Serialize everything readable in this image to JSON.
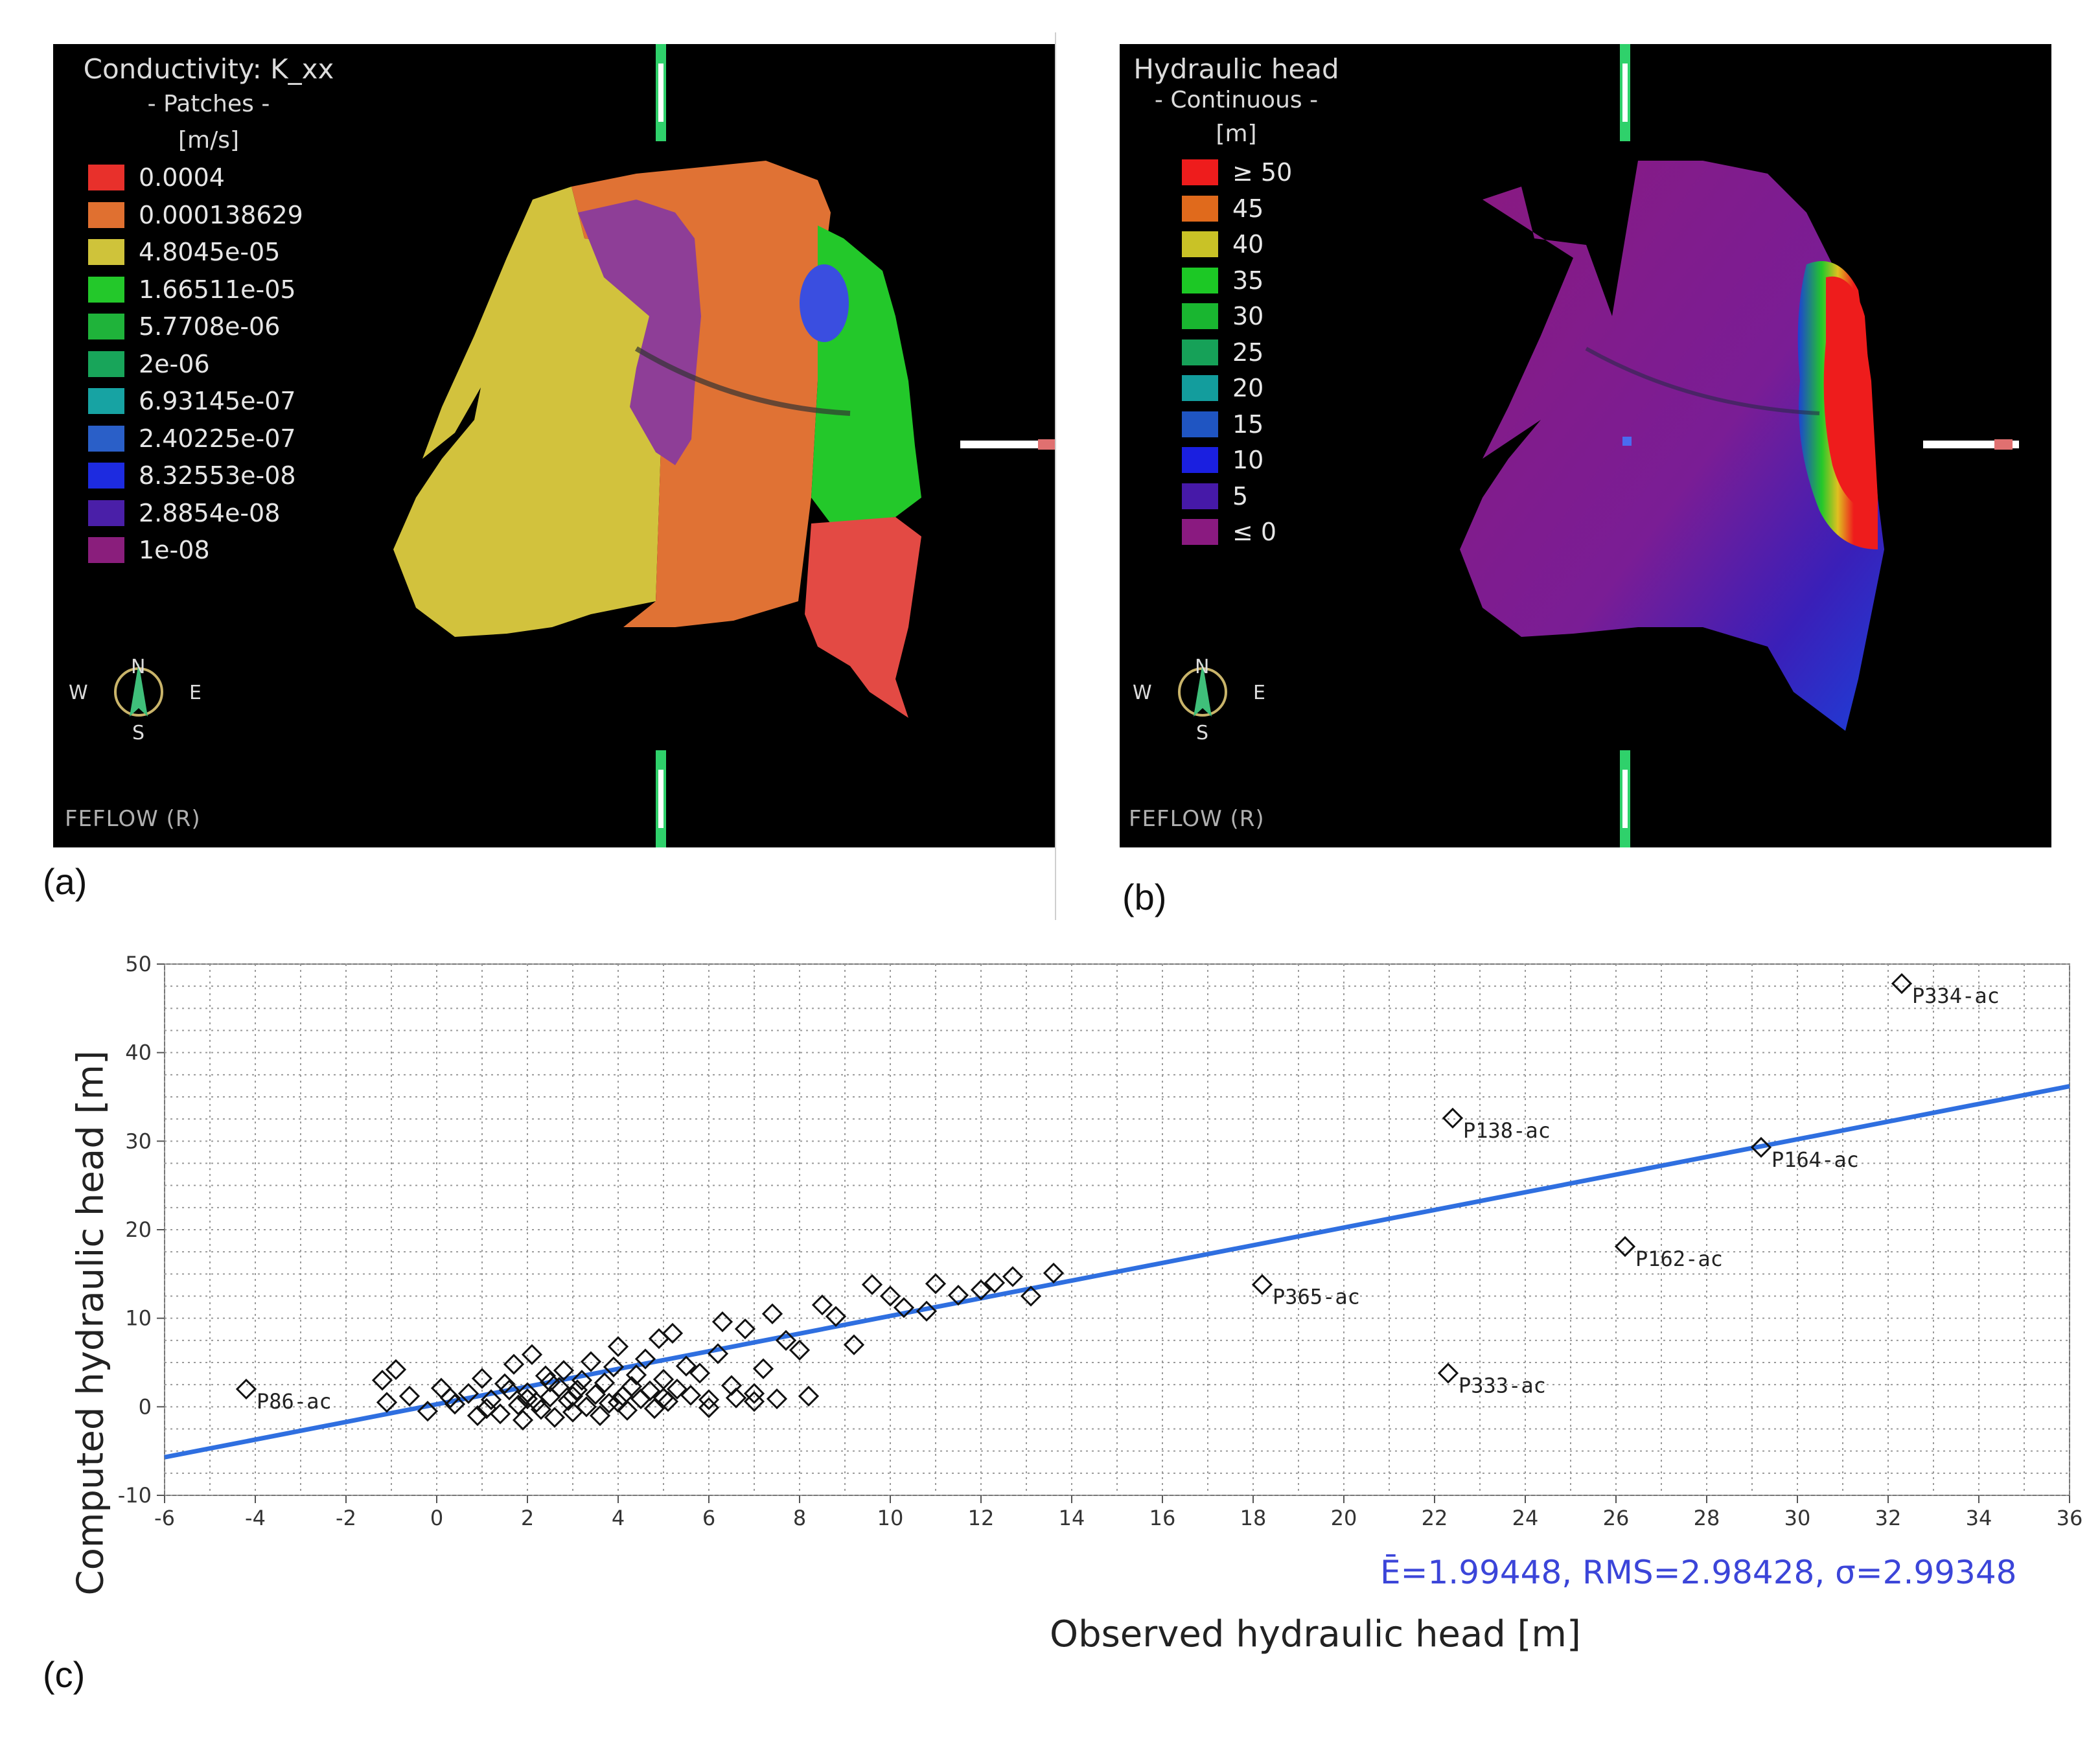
{
  "panel_a": {
    "legend": {
      "title": "Conductivity: K_xx",
      "subtitle": "- Patches -",
      "unit": "[m/s]",
      "items": [
        {
          "label": "0.0004",
          "color": "#e8302b"
        },
        {
          "label": "0.000138629",
          "color": "#e07030"
        },
        {
          "label": "4.8045e-05",
          "color": "#cfc33a"
        },
        {
          "label": "1.66511e-05",
          "color": "#23c82a"
        },
        {
          "label": "5.7708e-06",
          "color": "#1fb33a"
        },
        {
          "label": "2e-06",
          "color": "#18a55a"
        },
        {
          "label": "6.93145e-07",
          "color": "#17a3a3"
        },
        {
          "label": "2.40225e-07",
          "color": "#2a5fc8"
        },
        {
          "label": "8.32553e-08",
          "color": "#1d2be0"
        },
        {
          "label": "2.8854e-08",
          "color": "#4a1fa8"
        },
        {
          "label": "1e-08",
          "color": "#8a1e7c"
        }
      ]
    },
    "compass": {
      "n": "N",
      "s": "S",
      "e": "E",
      "w": "W"
    },
    "watermark": "FEFLOW (R)",
    "label": "(a)"
  },
  "panel_b": {
    "legend": {
      "title": "Hydraulic head",
      "subtitle": "- Continuous -",
      "unit": "[m]",
      "items": [
        {
          "label": "≥ 50",
          "color": "#ee1c1c"
        },
        {
          "label": "45",
          "color": "#e06a1c"
        },
        {
          "label": "40",
          "color": "#c9c226"
        },
        {
          "label": "35",
          "color": "#1cc825"
        },
        {
          "label": "30",
          "color": "#19b630"
        },
        {
          "label": "25",
          "color": "#16a158"
        },
        {
          "label": "20",
          "color": "#139d9d"
        },
        {
          "label": "15",
          "color": "#1f55c2"
        },
        {
          "label": "10",
          "color": "#1a1fe0"
        },
        {
          "label": "5",
          "color": "#4619a8"
        },
        {
          "label": "≤ 0",
          "color": "#8a1a80"
        }
      ]
    },
    "compass": {
      "n": "N",
      "s": "S",
      "e": "E",
      "w": "W"
    },
    "watermark": "FEFLOW (R)",
    "label": "(b)"
  },
  "panel_c": {
    "label": "(c)",
    "stats": "Ē=1.99448, RMS=2.98428, σ=2.99348"
  },
  "chart_data": {
    "type": "scatter",
    "xlabel": "Observed hydraulic head [m]",
    "ylabel": "Computed hydraulic head [m]",
    "xlim": [
      -6,
      36
    ],
    "ylim": [
      -10,
      50
    ],
    "xticks": [
      -6,
      -4,
      -2,
      0,
      2,
      4,
      6,
      8,
      10,
      12,
      14,
      16,
      18,
      20,
      22,
      24,
      26,
      28,
      30,
      32,
      34,
      36
    ],
    "yticks": [
      -10,
      0,
      10,
      20,
      30,
      40,
      50
    ],
    "grid": true,
    "marker": "diamond-open",
    "fit_line": {
      "color": "#2f6fe0",
      "x": [
        -6,
        36
      ],
      "y": [
        -5.7,
        36.2
      ]
    },
    "labeled_points": [
      {
        "x": 32.3,
        "y": 47.8,
        "label": "P334-ac"
      },
      {
        "x": 22.4,
        "y": 32.6,
        "label": "P138-ac"
      },
      {
        "x": 29.2,
        "y": 29.3,
        "label": "P164-ac"
      },
      {
        "x": 26.2,
        "y": 18.1,
        "label": "P162-ac"
      },
      {
        "x": 18.2,
        "y": 13.8,
        "label": "P365-ac"
      },
      {
        "x": 22.3,
        "y": 3.8,
        "label": "P333-ac"
      },
      {
        "x": -4.2,
        "y": 2.0,
        "label": "P86-ac"
      }
    ],
    "points": [
      [
        -1.2,
        3.0
      ],
      [
        -0.9,
        4.2
      ],
      [
        -1.1,
        0.5
      ],
      [
        -0.6,
        1.2
      ],
      [
        -0.2,
        -0.5
      ],
      [
        0.1,
        2.1
      ],
      [
        0.4,
        0.3
      ],
      [
        0.7,
        1.5
      ],
      [
        0.9,
        -1.0
      ],
      [
        1.0,
        3.2
      ],
      [
        1.2,
        0.8
      ],
      [
        1.4,
        -0.8
      ],
      [
        1.5,
        2.6
      ],
      [
        1.7,
        4.8
      ],
      [
        1.8,
        0.2
      ],
      [
        1.9,
        -1.5
      ],
      [
        2.0,
        1.6
      ],
      [
        2.1,
        5.9
      ],
      [
        2.2,
        0.5
      ],
      [
        2.3,
        -0.3
      ],
      [
        2.4,
        3.5
      ],
      [
        2.5,
        1.1
      ],
      [
        2.6,
        -1.2
      ],
      [
        2.7,
        2.2
      ],
      [
        2.8,
        4.1
      ],
      [
        2.9,
        0.7
      ],
      [
        3.0,
        -0.6
      ],
      [
        3.1,
        1.9
      ],
      [
        3.2,
        3.0
      ],
      [
        3.3,
        0.0
      ],
      [
        3.4,
        5.1
      ],
      [
        3.5,
        1.4
      ],
      [
        3.6,
        -1.0
      ],
      [
        3.7,
        2.7
      ],
      [
        3.8,
        0.4
      ],
      [
        3.9,
        4.5
      ],
      [
        4.0,
        6.8
      ],
      [
        4.1,
        1.2
      ],
      [
        4.2,
        -0.4
      ],
      [
        4.3,
        2.3
      ],
      [
        4.4,
        3.6
      ],
      [
        4.5,
        0.9
      ],
      [
        4.6,
        5.4
      ],
      [
        4.7,
        1.8
      ],
      [
        4.8,
        -0.2
      ],
      [
        4.9,
        7.7
      ],
      [
        5.0,
        3.1
      ],
      [
        5.1,
        0.6
      ],
      [
        5.2,
        8.3
      ],
      [
        5.3,
        2.0
      ],
      [
        5.5,
        4.6
      ],
      [
        5.6,
        1.3
      ],
      [
        5.8,
        3.8
      ],
      [
        6.0,
        0.8
      ],
      [
        6.2,
        6.0
      ],
      [
        6.3,
        9.6
      ],
      [
        6.5,
        2.4
      ],
      [
        6.6,
        1.0
      ],
      [
        6.8,
        8.8
      ],
      [
        7.0,
        1.5
      ],
      [
        7.2,
        4.3
      ],
      [
        7.4,
        10.5
      ],
      [
        7.5,
        0.9
      ],
      [
        7.7,
        7.5
      ],
      [
        8.0,
        6.4
      ],
      [
        8.2,
        1.2
      ],
      [
        8.5,
        11.5
      ],
      [
        8.8,
        10.2
      ],
      [
        9.2,
        7.0
      ],
      [
        9.6,
        13.8
      ],
      [
        10.0,
        12.5
      ],
      [
        10.3,
        11.2
      ],
      [
        10.8,
        10.8
      ],
      [
        11.0,
        13.9
      ],
      [
        11.5,
        12.6
      ],
      [
        12.0,
        13.2
      ],
      [
        12.3,
        14.0
      ],
      [
        12.7,
        14.7
      ],
      [
        13.1,
        12.5
      ],
      [
        13.6,
        15.1
      ],
      [
        0.3,
        1.0
      ],
      [
        1.1,
        -0.2
      ],
      [
        2.0,
        0.9
      ],
      [
        3.0,
        1.2
      ],
      [
        4.0,
        0.5
      ],
      [
        5.0,
        1.0
      ],
      [
        6.0,
        -0.1
      ],
      [
        7.0,
        0.6
      ],
      [
        2.5,
        2.8
      ],
      [
        1.6,
        1.9
      ]
    ]
  }
}
